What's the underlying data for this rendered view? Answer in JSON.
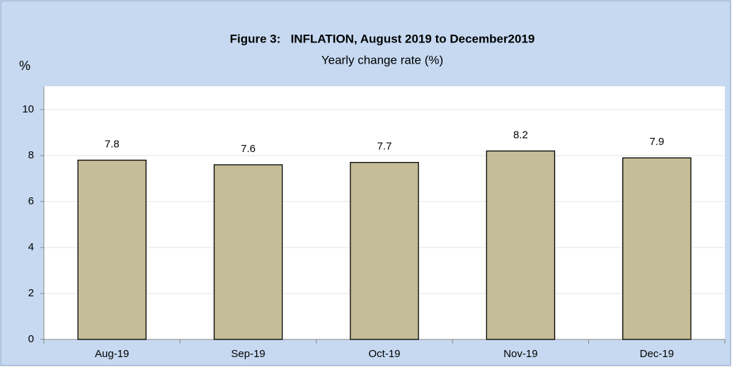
{
  "chart_data": {
    "type": "bar",
    "title": "Figure 3:   INFLATION, August 2019 to December2019",
    "subtitle": "Yearly change rate (%)",
    "y_label": "%",
    "categories": [
      "Aug-19",
      "Sep-19",
      "Oct-19",
      "Nov-19",
      "Dec-19"
    ],
    "values": [
      7.8,
      7.6,
      7.7,
      8.2,
      7.9
    ],
    "color": "#c4bd97",
    "ylim": [
      0,
      11
    ],
    "yticks": [
      0,
      2,
      4,
      6,
      8,
      10
    ],
    "grid": true
  }
}
